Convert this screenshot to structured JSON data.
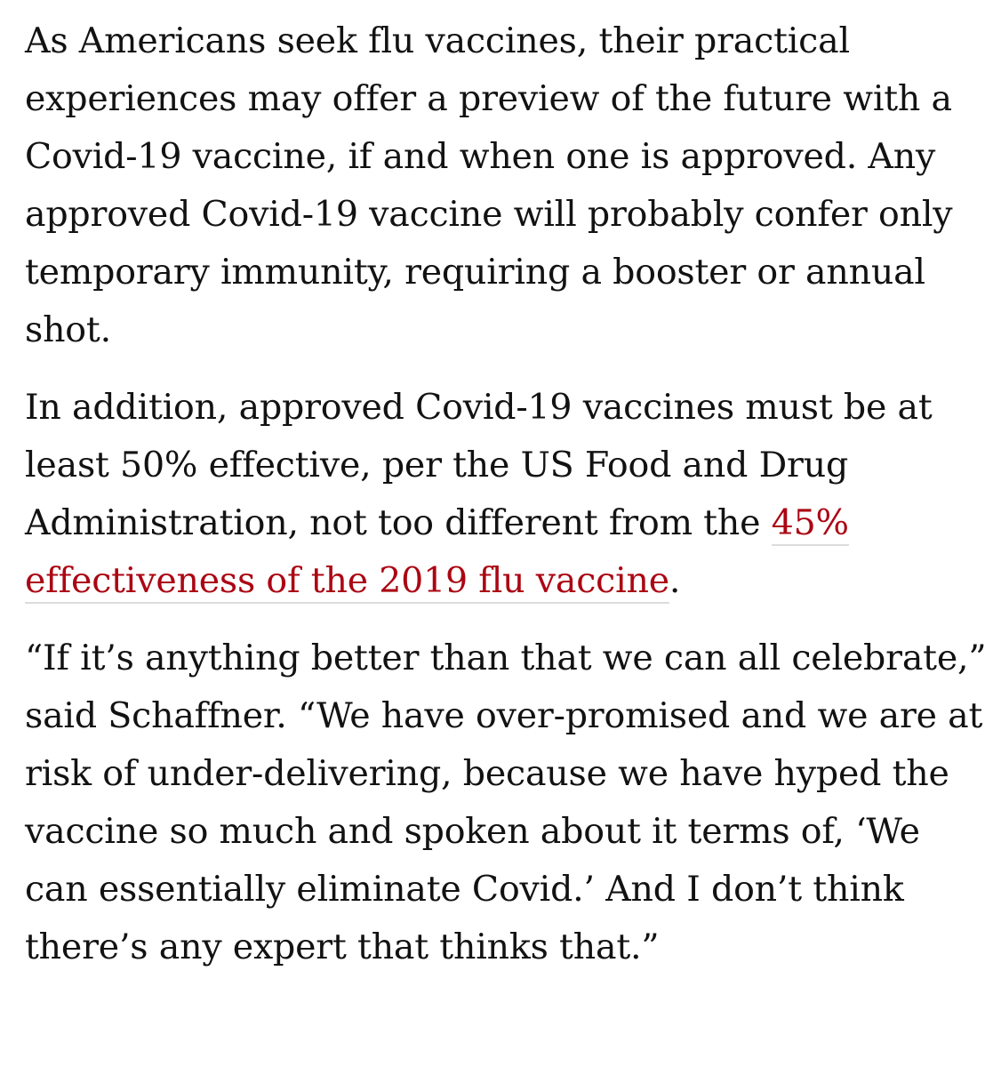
{
  "article": {
    "paragraphs": [
      {
        "text": "As Americans seek flu vaccines, their practical experiences may offer a preview of the future with a Covid-19 vaccine, if and when one is approved. Any approved Covid-19 vaccine will probably confer only temporary immunity, requiring a booster or annual shot."
      },
      {
        "before": "In addition, approved Covid-19 vaccines must be at least 50% effective, per the US Food and Drug Administration, not too different from the ",
        "link_text": "45% effectiveness of the 2019 flu vaccine",
        "after": "."
      },
      {
        "text": "“If it’s anything better than that we can all celebrate,” said Schaffner. “We have over-promised and we are at risk of under-delivering, because we have hyped the vaccine so much and spoken about it terms of, ‘We can essentially eliminate Covid.’ And I don’t think there’s any expert that thinks that.”"
      }
    ]
  },
  "colors": {
    "text": "#121212",
    "link": "#ab0613",
    "link_underline": "#dcdcdc",
    "background": "#ffffff"
  }
}
